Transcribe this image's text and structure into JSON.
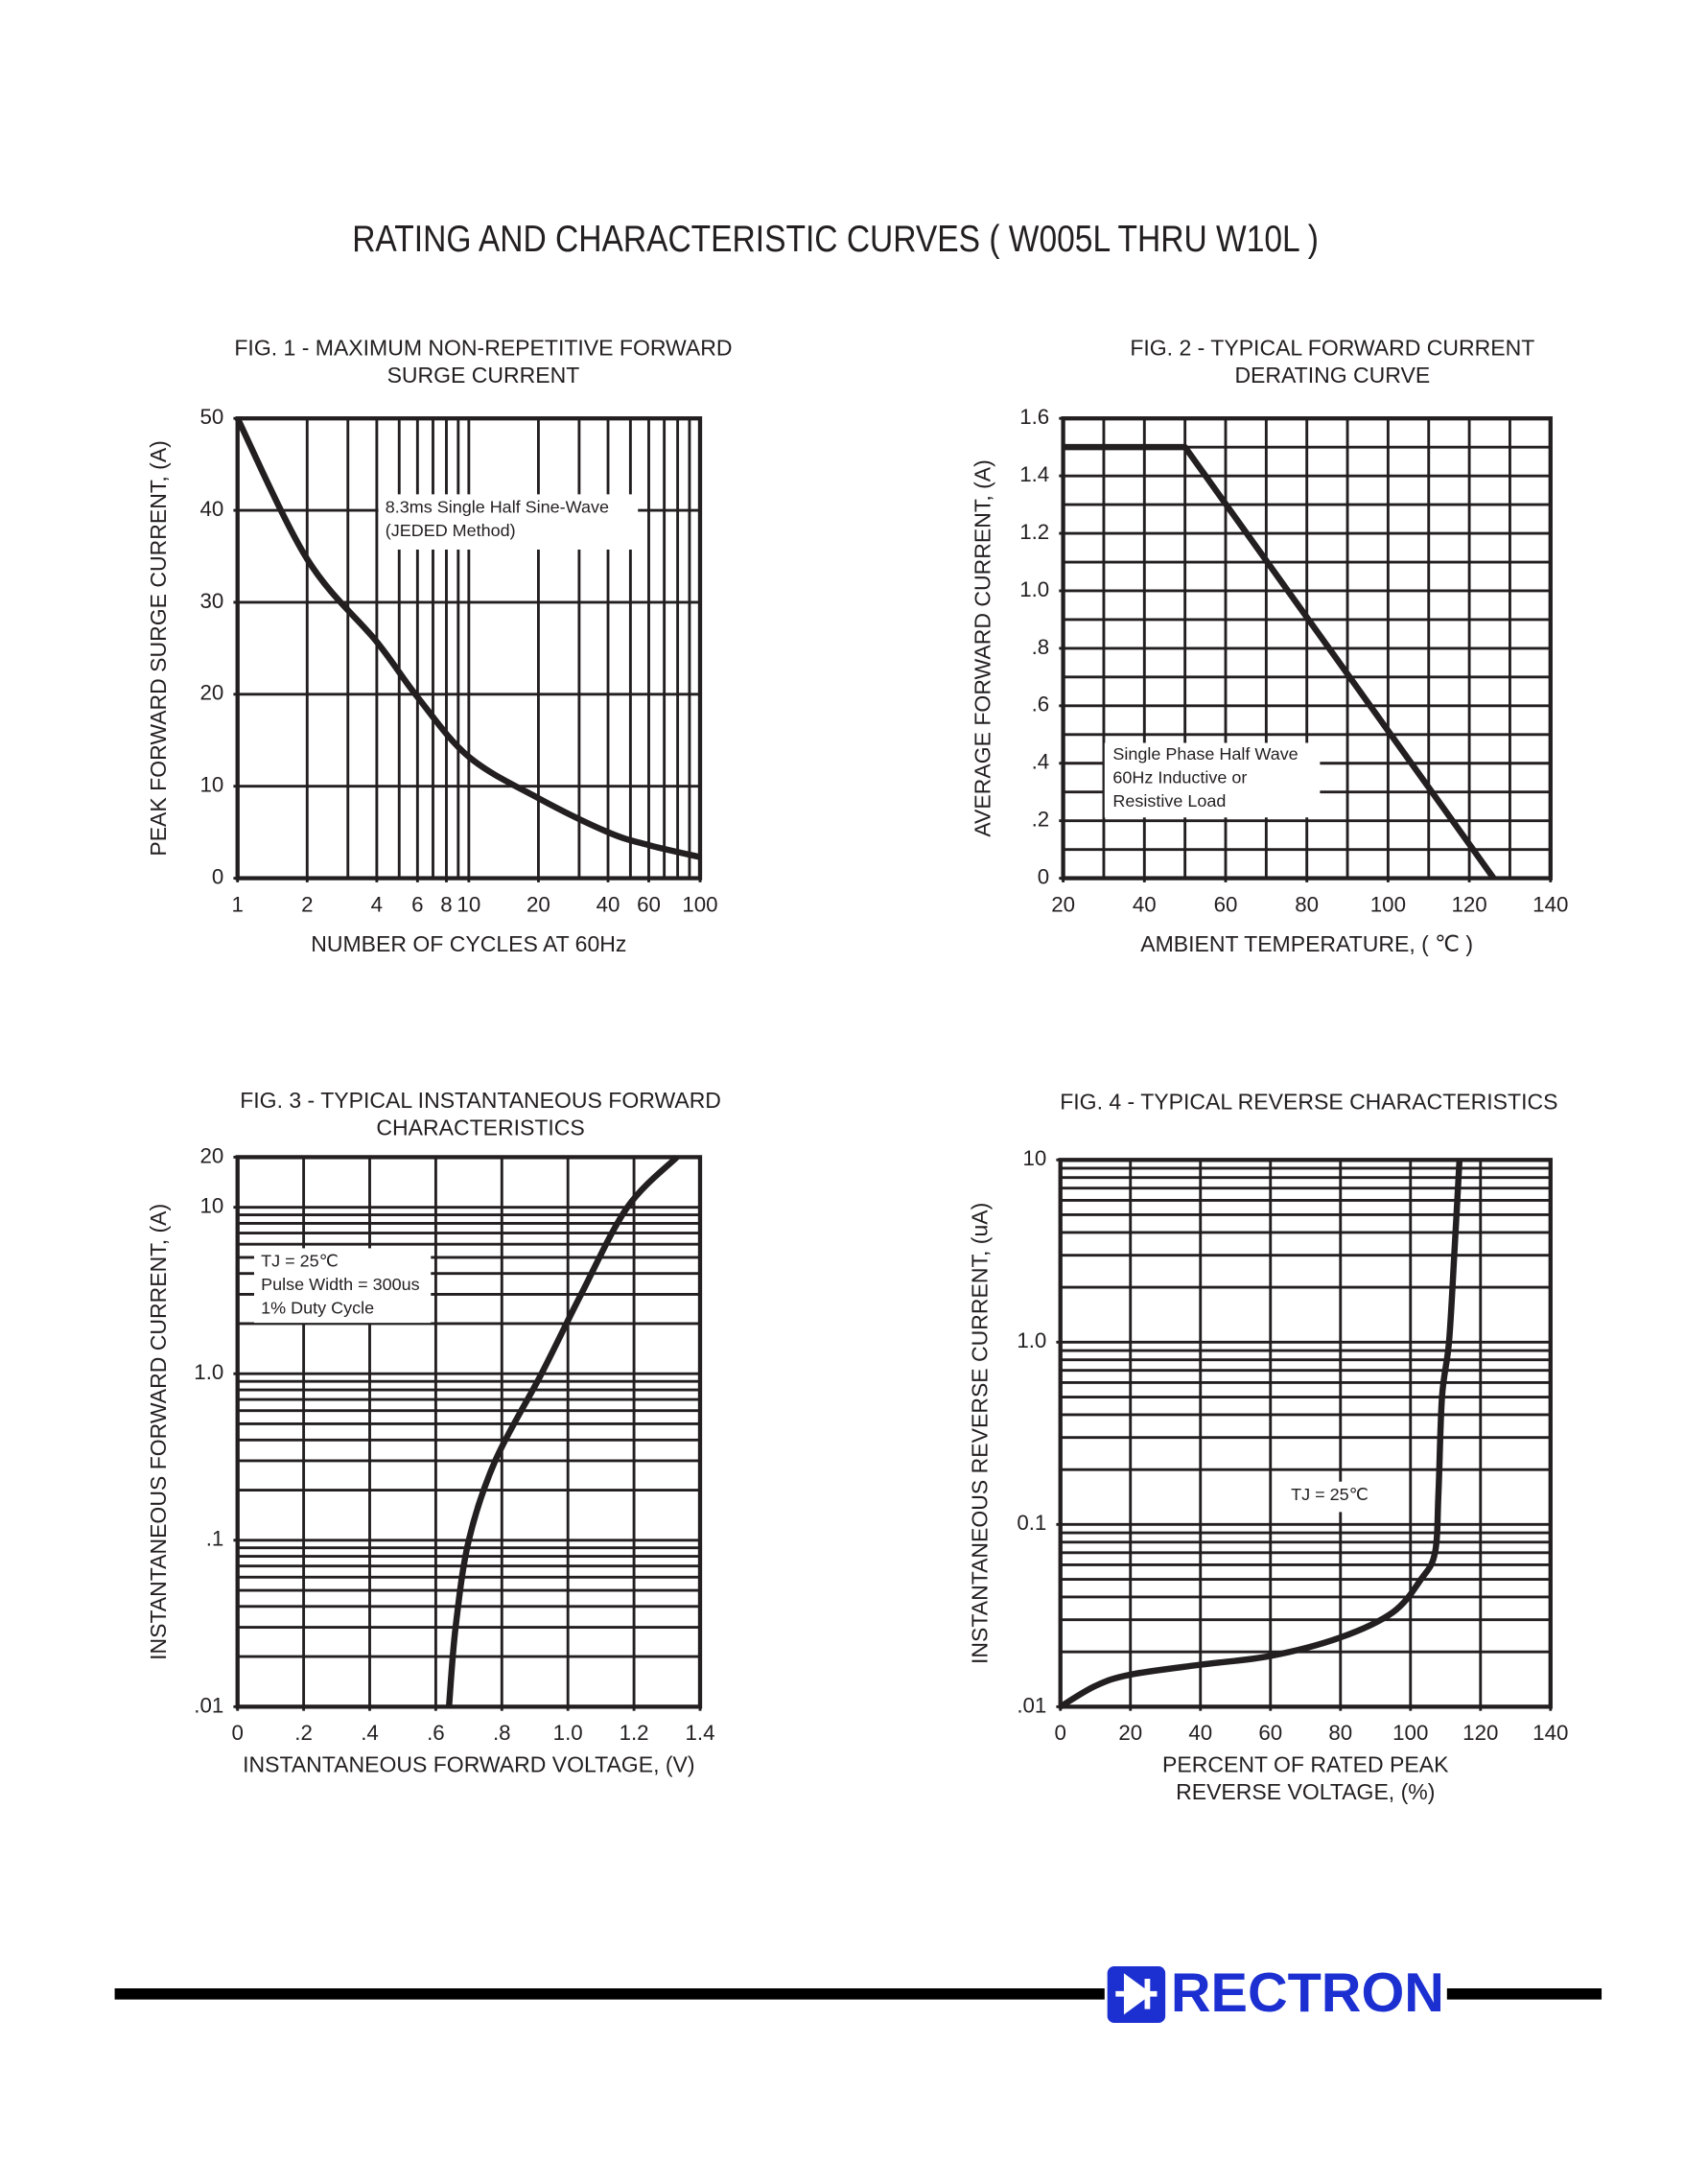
{
  "page_title": "RATING AND CHARACTERISTIC CURVES ( W005L THRU W10L )",
  "brand": "RECTRON",
  "chart_data": [
    {
      "type": "line",
      "title": [
        "FIG. 1 - MAXIMUM NON-REPETITIVE FORWARD",
        "SURGE CURRENT"
      ],
      "x_label": [
        "NUMBER OF CYCLES AT 60Hz"
      ],
      "y_label": "PEAK FORWARD SURGE CURRENT, (A)",
      "annotation": [
        "8.3ms Single Half Sine-Wave",
        "(JEDED Method)"
      ],
      "xscale": "log",
      "xlim": [
        1,
        100
      ],
      "xticks": [
        1,
        2,
        4,
        6,
        8,
        10,
        20,
        40,
        60,
        100
      ],
      "ylim": [
        0,
        50
      ],
      "yticks": [
        0,
        10,
        20,
        30,
        40,
        50
      ],
      "xgrid": "minor",
      "ygrid": "major",
      "smooth": true,
      "color": "#231f20",
      "x": [
        1,
        2,
        4,
        6,
        10,
        20,
        40,
        60,
        100
      ],
      "values": [
        50,
        34.7,
        25.7,
        19.7,
        13.2,
        8.7,
        5,
        3.6,
        2.3
      ]
    },
    {
      "type": "line",
      "title": [
        "FIG. 2 - TYPICAL FORWARD CURRENT",
        "DERATING CURVE"
      ],
      "x_label": [
        "AMBIENT TEMPERATURE, ( ℃ )"
      ],
      "y_label": "AVERAGE FORWARD CURRENT, (A)",
      "annotation": [
        "Single Phase Half Wave",
        "60Hz Inductive or",
        "Resistive Load"
      ],
      "xscale": "linear",
      "xlim": [
        20,
        140
      ],
      "xticks": [
        20,
        40,
        60,
        80,
        100,
        120,
        140
      ],
      "ylim": [
        0,
        1.6
      ],
      "yticks": [
        0,
        {
          "value": 0.2,
          "label": ".2"
        },
        {
          "value": 0.4,
          "label": ".4"
        },
        {
          "value": 0.6,
          "label": ".6"
        },
        {
          "value": 0.8,
          "label": ".8"
        },
        {
          "value": 1,
          "label": "1.0"
        },
        1.2,
        1.4,
        1.6
      ],
      "xgrid": "minor",
      "ygrid": "minor",
      "smooth": false,
      "color": "#231f20",
      "x": [
        20,
        50,
        126
      ],
      "values": [
        1.5,
        1.5,
        0
      ]
    },
    {
      "type": "line",
      "title": [
        "FIG. 3 - TYPICAL INSTANTANEOUS FORWARD",
        "CHARACTERISTICS"
      ],
      "x_label": [
        "INSTANTANEOUS FORWARD VOLTAGE, (V)"
      ],
      "y_label": "INSTANTANEOUS FORWARD CURRENT, (A)",
      "annotation": [
        "TJ = 25℃",
        "Pulse Width = 300us",
        "1% Duty Cycle"
      ],
      "xscale": "linear",
      "xlim": [
        0,
        1.4
      ],
      "xticks": [
        0,
        {
          "value": 0.2,
          "label": ".2"
        },
        {
          "value": 0.4,
          "label": ".4"
        },
        {
          "value": 0.6,
          "label": ".6"
        },
        {
          "value": 0.8,
          "label": ".8"
        },
        {
          "value": 1,
          "label": "1.0"
        },
        1.2,
        1.4
      ],
      "yscale": "log",
      "ylim": [
        0.01,
        20
      ],
      "yticks": [
        {
          "value": 0.01,
          "label": ".01"
        },
        {
          "value": 0.1,
          "label": ".1"
        },
        {
          "value": 1,
          "label": "1.0"
        },
        10,
        20
      ],
      "xgrid": "major",
      "ygrid": "minor",
      "smooth": true,
      "color": "#231f20",
      "x": [
        0.64,
        0.66,
        0.7,
        0.78,
        0.92,
        1.04,
        1.18,
        1.33
      ],
      "values": [
        0.01,
        0.03,
        0.1,
        0.3,
        1,
        3,
        10,
        20
      ]
    },
    {
      "type": "line",
      "title": [
        "FIG. 4 - TYPICAL REVERSE CHARACTERISTICS"
      ],
      "x_label": [
        "PERCENT OF RATED PEAK",
        "REVERSE VOLTAGE, (%)"
      ],
      "y_label": "INSTANTANEOUS REVERSE CURRENT, (uA)",
      "annotation": [
        "TJ = 25℃"
      ],
      "xscale": "linear",
      "xlim": [
        0,
        140
      ],
      "xticks": [
        0,
        20,
        40,
        60,
        80,
        100,
        120,
        140
      ],
      "yscale": "log",
      "ylim": [
        0.01,
        10
      ],
      "yticks": [
        {
          "value": 0.01,
          "label": ".01"
        },
        0.1,
        {
          "value": 1,
          "label": "1.0"
        },
        10
      ],
      "xgrid": "major",
      "ygrid": "minor",
      "smooth": true,
      "color": "#231f20",
      "x": [
        0,
        10,
        20,
        40,
        60,
        80,
        95,
        103,
        107,
        108,
        109,
        111,
        112.5,
        114
      ],
      "values": [
        0.01,
        0.013,
        0.015,
        0.017,
        0.019,
        0.024,
        0.033,
        0.05,
        0.07,
        0.15,
        0.5,
        1,
        3,
        10
      ]
    }
  ]
}
